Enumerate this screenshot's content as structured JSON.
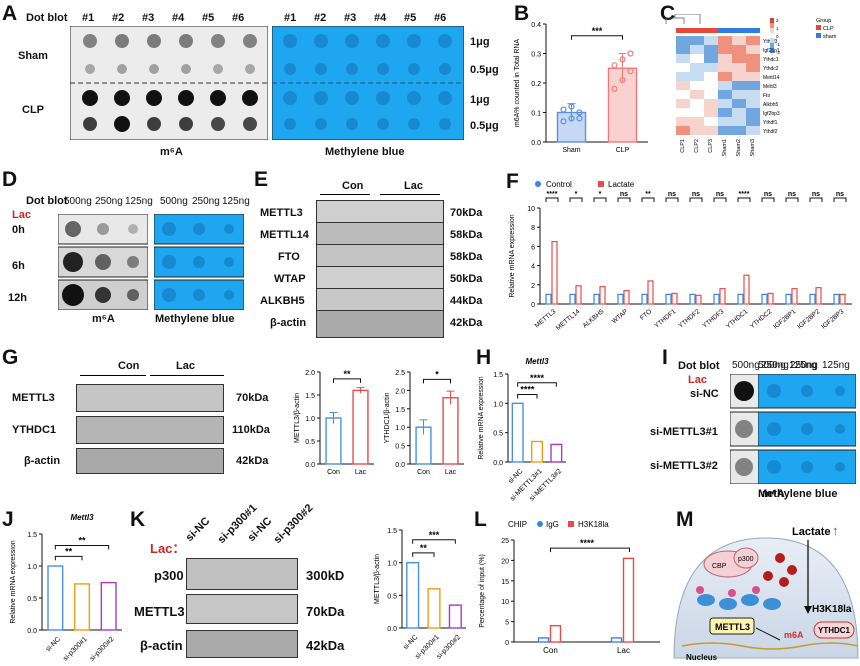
{
  "panel_letters": [
    "A",
    "B",
    "C",
    "D",
    "E",
    "F",
    "G",
    "H",
    "I",
    "J",
    "K",
    "L",
    "M"
  ],
  "A": {
    "title": "Dot blot",
    "columns": [
      "#1",
      "#2",
      "#3",
      "#4",
      "#5",
      "#6"
    ],
    "rows": [
      "Sham",
      "CLP"
    ],
    "amounts": [
      "1μg",
      "0.5μg",
      "1μg",
      "0.5μg"
    ],
    "left_caption": "m⁶A",
    "right_caption": "Methylene blue"
  },
  "B": {
    "ylabel": "m6A% counted in Total RNA",
    "sig": "***",
    "chart_data": {
      "type": "bar",
      "categories": [
        "Sham",
        "CLP"
      ],
      "values": [
        0.1,
        0.25
      ],
      "errors": [
        0.03,
        0.05
      ],
      "points": [
        [
          0.07,
          0.08,
          0.1,
          0.11,
          0.12,
          0.08
        ],
        [
          0.18,
          0.21,
          0.24,
          0.26,
          0.28,
          0.3
        ]
      ],
      "ylim": [
        0,
        0.4
      ],
      "yticks": [
        "0.0",
        "0.1",
        "0.2",
        "0.3",
        "0.4"
      ],
      "colors": [
        "#5b8fe0",
        "#f07a7a"
      ]
    }
  },
  "C": {
    "legend_title": "Group",
    "legend": [
      "CLP",
      "sham"
    ],
    "legend_colors": [
      "#e8473a",
      "#2f7de1"
    ],
    "scale": [
      "2",
      "1",
      "0",
      "-1",
      "-2"
    ],
    "genes": [
      "Ythdf3",
      "Igf2bp1",
      "Ythdc1",
      "Ythdc2",
      "Mettl14",
      "Mettl3",
      "Fto",
      "Alkbh5",
      "Igf2bp3",
      "Ythdf1",
      "Ythdf2"
    ],
    "samples": [
      "CLP1",
      "CLP2",
      "CLP3",
      "Sham1",
      "Sham2",
      "Sham3"
    ]
  },
  "D": {
    "title": "Dot blot",
    "amounts": [
      "500ng",
      "250ng",
      "125ng",
      "500ng",
      "250ng",
      "125ng"
    ],
    "treatment": "Lac",
    "times": [
      "0h",
      "6h",
      "12h"
    ],
    "left_caption": "m⁶A",
    "right_caption": "Methylene blue"
  },
  "E": {
    "groups": [
      "Con",
      "Lac"
    ],
    "proteins": [
      "METTL3",
      "METTL14",
      "FTO",
      "WTAP",
      "ALKBH5",
      "β-actin"
    ],
    "sizes": [
      "70kDa",
      "58kDa",
      "58kDa",
      "50kDa",
      "44kDa",
      "42kDa"
    ]
  },
  "F": {
    "legend": [
      "Control",
      "Lactate"
    ],
    "ylabel": "Relative mRNA expression",
    "sig": [
      "****",
      "*",
      "*",
      "ns",
      "**",
      "ns",
      "ns",
      "ns",
      "****",
      "ns",
      "ns",
      "ns",
      "ns"
    ],
    "chart_data": {
      "type": "bar",
      "categories": [
        "METTL3",
        "METTL14",
        "ALKBH5",
        "WTAP",
        "FTO",
        "YTHDF1",
        "YTHDF2",
        "YTHDF3",
        "YTHDC1",
        "YTHDC2",
        "IGF2BP1",
        "IGF2BP2",
        "IGF2BP3"
      ],
      "series": [
        {
          "name": "Control",
          "values": [
            1,
            1,
            1,
            1,
            1,
            1,
            1,
            1,
            1,
            1,
            1,
            1,
            1
          ]
        },
        {
          "name": "Lactate",
          "values": [
            6.5,
            1.9,
            1.8,
            1.4,
            2.4,
            1.1,
            0.9,
            1.6,
            3.0,
            1.1,
            1.6,
            1.7,
            1.0
          ]
        }
      ],
      "ylim": [
        0,
        10
      ],
      "yticks": [
        "0",
        "2",
        "4",
        "6",
        "8",
        "10"
      ],
      "colors": [
        "#3b83e6",
        "#ec4a4a"
      ]
    }
  },
  "G": {
    "groups": [
      "Con",
      "Lac"
    ],
    "proteins": [
      "METTL3",
      "YTHDC1",
      "β-actin"
    ],
    "sizes": [
      "70kDa",
      "110kDa",
      "42kDa"
    ],
    "chart1": {
      "ylabel": "METTL3/β-actin",
      "sig": "**",
      "chart_data": {
        "type": "bar",
        "categories": [
          "Con",
          "Lac"
        ],
        "values": [
          1.0,
          1.6
        ],
        "errors": [
          0.12,
          0.06
        ],
        "ylim": [
          0,
          2.0
        ],
        "yticks": [
          "0.0",
          "0.5",
          "1.0",
          "1.5",
          "2.0"
        ]
      }
    },
    "chart2": {
      "ylabel": "YTHDC1/β-actin",
      "sig": "*",
      "chart_data": {
        "type": "bar",
        "categories": [
          "Con",
          "Lac"
        ],
        "values": [
          1.0,
          1.8
        ],
        "errors": [
          0.2,
          0.18
        ],
        "ylim": [
          0,
          2.5
        ],
        "yticks": [
          "0.0",
          "0.5",
          "1.0",
          "1.5",
          "2.0",
          "2.5"
        ]
      }
    },
    "colors": [
      "#4a90e2",
      "#e84c4c"
    ]
  },
  "H": {
    "title": "Mettl3",
    "ylabel": "Relative mRNA expression",
    "sig": [
      "****",
      "****"
    ],
    "chart_data": {
      "type": "bar",
      "categories": [
        "si-NC",
        "si-METTL3#1",
        "si-METTL3#2"
      ],
      "values": [
        1.0,
        0.35,
        0.3
      ],
      "ylim": [
        0,
        1.5
      ],
      "yticks": [
        "0.0",
        "0.5",
        "1.0",
        "1.5"
      ],
      "colors": [
        "#4a90e2",
        "#f39c12",
        "#a93ac9"
      ]
    }
  },
  "I": {
    "title": "Dot blot",
    "amounts": [
      "500ng",
      "250ng",
      "125ng",
      "500ng",
      "250ng",
      "125ng"
    ],
    "treatment": "Lac",
    "rows": [
      "si-NC",
      "si-METTL3#1",
      "si-METTL3#2"
    ],
    "left_caption": "m⁶A",
    "right_caption": "Methylene blue"
  },
  "J": {
    "title": "Mettl3",
    "ylabel": "Relative mRNA expression",
    "sig": [
      "**",
      "**"
    ],
    "chart_data": {
      "type": "bar",
      "categories": [
        "si-NC",
        "si-p300#1",
        "si-p300#2"
      ],
      "values": [
        1.0,
        0.72,
        0.74
      ],
      "ylim": [
        0,
        1.5
      ],
      "yticks": [
        "0.0",
        "0.5",
        "1.0",
        "1.5"
      ],
      "colors": [
        "#4a90e2",
        "#f39c12",
        "#a93ac9"
      ]
    }
  },
  "K": {
    "treatment": "Lac：",
    "lanes": [
      "si-NC",
      "si-p300#1",
      "si-NC",
      "si-p300#2"
    ],
    "proteins": [
      "p300",
      "METTL3",
      "β-actin"
    ],
    "sizes": [
      "300kD",
      "70kDa",
      "42kDa"
    ],
    "ylabel": "METTL3/β-actin",
    "sig": [
      "**",
      "***"
    ],
    "chart_data": {
      "type": "bar",
      "categories": [
        "si-NC",
        "si-p300#1",
        "si-p300#2"
      ],
      "values": [
        1.0,
        0.6,
        0.35
      ],
      "ylim": [
        0,
        1.5
      ],
      "yticks": [
        "0.0",
        "0.5",
        "1.0",
        "1.5"
      ],
      "colors": [
        "#4a90e2",
        "#f39c12",
        "#a93ac9"
      ]
    }
  },
  "L": {
    "legend_title": "CHIP",
    "legend": [
      "IgG",
      "H3K18la"
    ],
    "ylabel": "Percentage of input (%)",
    "sig": "****",
    "chart_data": {
      "type": "bar",
      "categories": [
        "Con",
        "Lac"
      ],
      "series": [
        {
          "name": "IgG",
          "values": [
            1.0,
            1.0
          ]
        },
        {
          "name": "H3K18la",
          "values": [
            4.0,
            20.5
          ]
        }
      ],
      "ylim": [
        0,
        25
      ],
      "yticks": [
        "0",
        "5",
        "10",
        "15",
        "20",
        "25"
      ],
      "colors": [
        "#3b83e6",
        "#ec4a4a"
      ]
    }
  },
  "M": {
    "lactate": "Lactate",
    "mark": "H3K18la",
    "cbp": "CBP",
    "p300": "p300",
    "kla": "Kla",
    "la": "La",
    "nucleus": "Nucleus",
    "mettl3": "METTL3",
    "m6a": "m6A",
    "ythdc1": "YTHDC1"
  }
}
